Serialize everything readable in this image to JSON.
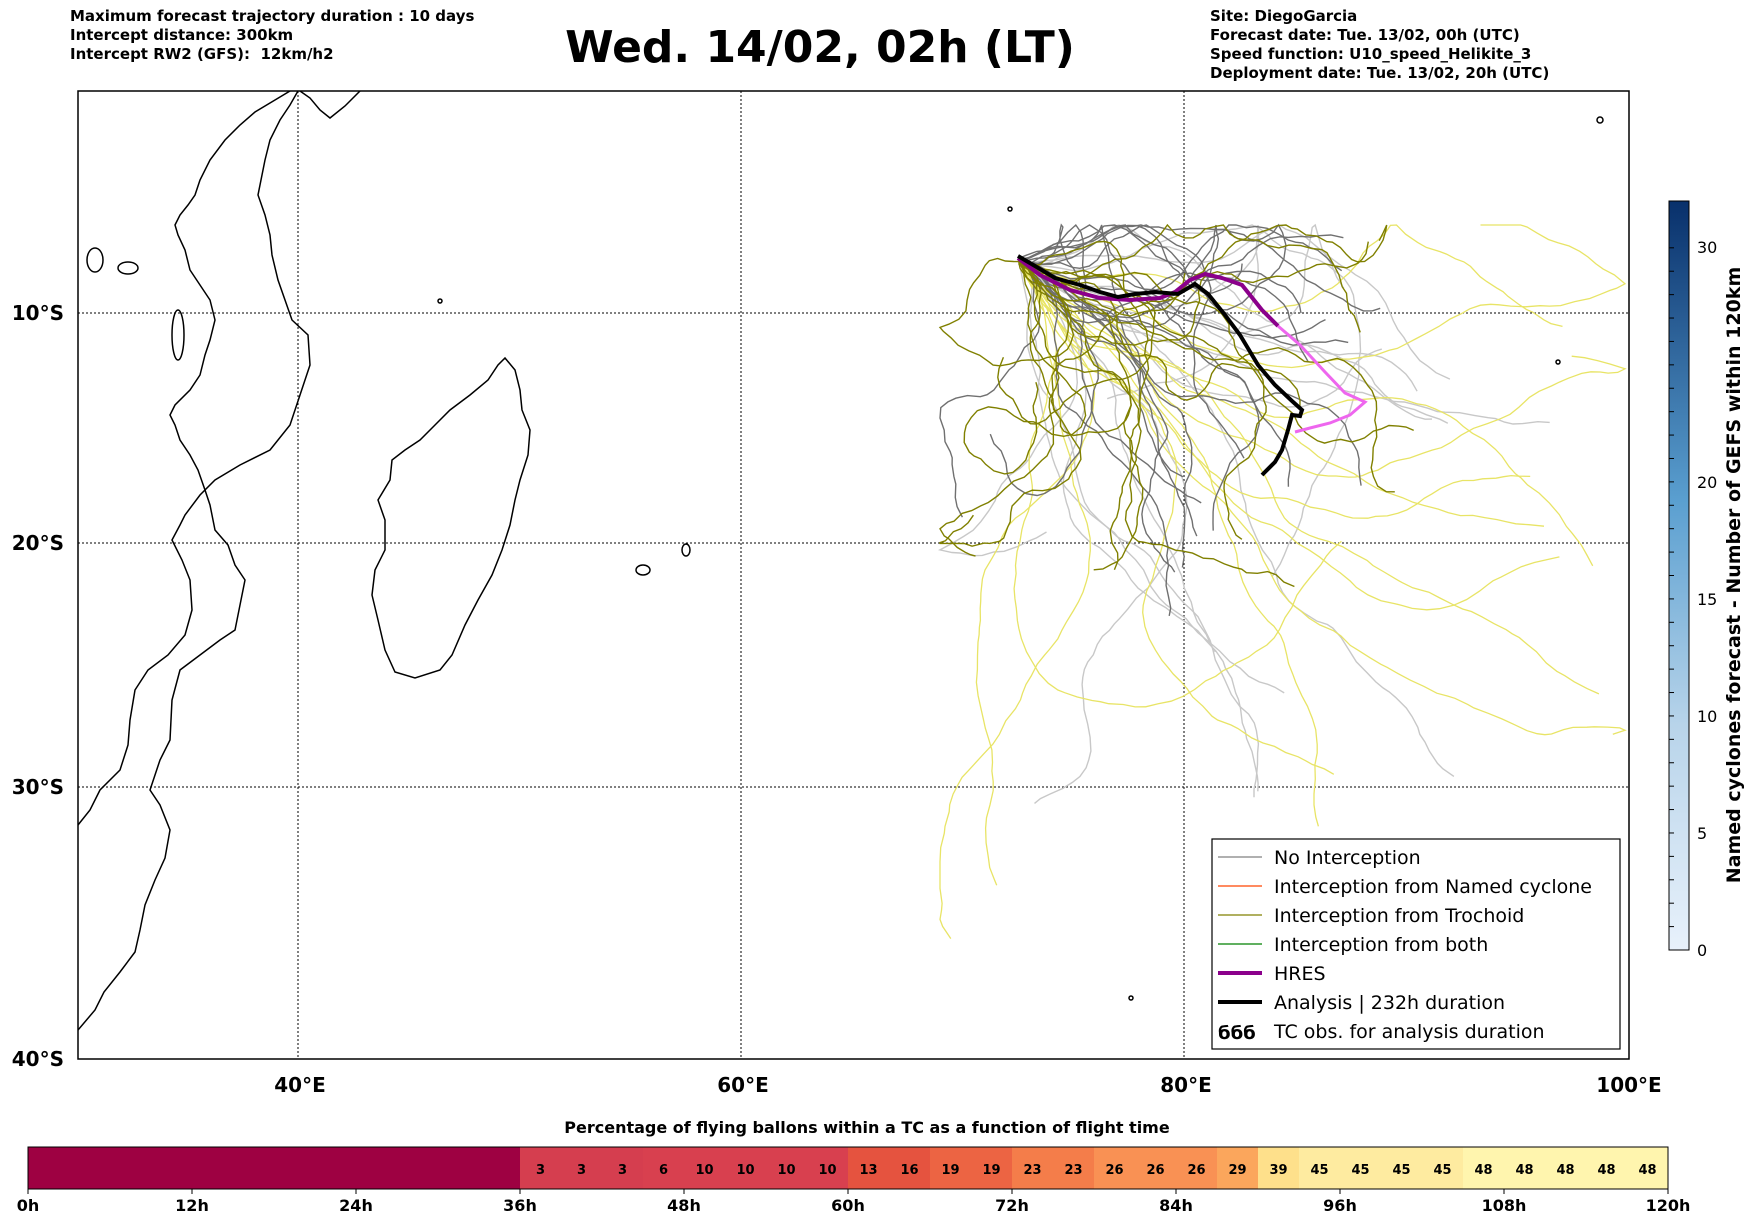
{
  "header": {
    "left_lines": [
      "Maximum forecast trajectory duration : 10 days",
      "Intercept distance: 300km",
      "Intercept RW2 (GFS):  12km/h2"
    ],
    "title": "Wed. 14/02, 02h (LT)",
    "right_lines": [
      "Site: DiegoGarcia",
      "Forecast date: Tue. 13/02, 00h (UTC)",
      "Speed function: U10_speed_Helikite_3",
      "Deployment date: Tue. 13/02, 20h (UTC)"
    ]
  },
  "map": {
    "lon_ticks": [
      "40°E",
      "60°E",
      "80°E",
      "100°E"
    ],
    "lat_ticks": [
      "10°S",
      "20°S",
      "30°S",
      "40°S"
    ],
    "extent": {
      "lon": [
        30,
        100
      ],
      "lat": [
        0,
        -40
      ]
    }
  },
  "legend": {
    "items": [
      {
        "label": "No Interception",
        "color": "#808080",
        "width": 1.3
      },
      {
        "label": "Interception from Named cyclone",
        "color": "#ff4500",
        "width": 1.3
      },
      {
        "label": "Interception from Trochoid",
        "color": "#808000",
        "width": 1.3
      },
      {
        "label": "Interception from both",
        "color": "#008000",
        "width": 1.3
      },
      {
        "label": "HRES",
        "color": "#8b008b",
        "width": 4
      },
      {
        "label": "Analysis | 232h duration",
        "color": "#000000",
        "width": 4
      }
    ],
    "tc_label": "TC obs. for analysis duration",
    "tc_symbol": "ббб"
  },
  "colorbar_right": {
    "label": "Named cyclones forecast - Number of GEFS within 120km",
    "ticks": [
      "0",
      "5",
      "10",
      "15",
      "20",
      "30"
    ]
  },
  "bottom_bar": {
    "title": "Percentage of flying ballons within a TC as a function of flight time",
    "values": [
      "3",
      "3",
      "3",
      "6",
      "10",
      "10",
      "10",
      "10",
      "13",
      "16",
      "19",
      "19",
      "23",
      "23",
      "26",
      "26",
      "26",
      "29",
      "39",
      "45",
      "45",
      "45",
      "45",
      "48",
      "48",
      "48",
      "48",
      "48"
    ],
    "time_labels": [
      "0h",
      "12h",
      "24h",
      "36h",
      "48h",
      "60h",
      "72h",
      "84h",
      "96h",
      "108h",
      "120h"
    ]
  }
}
